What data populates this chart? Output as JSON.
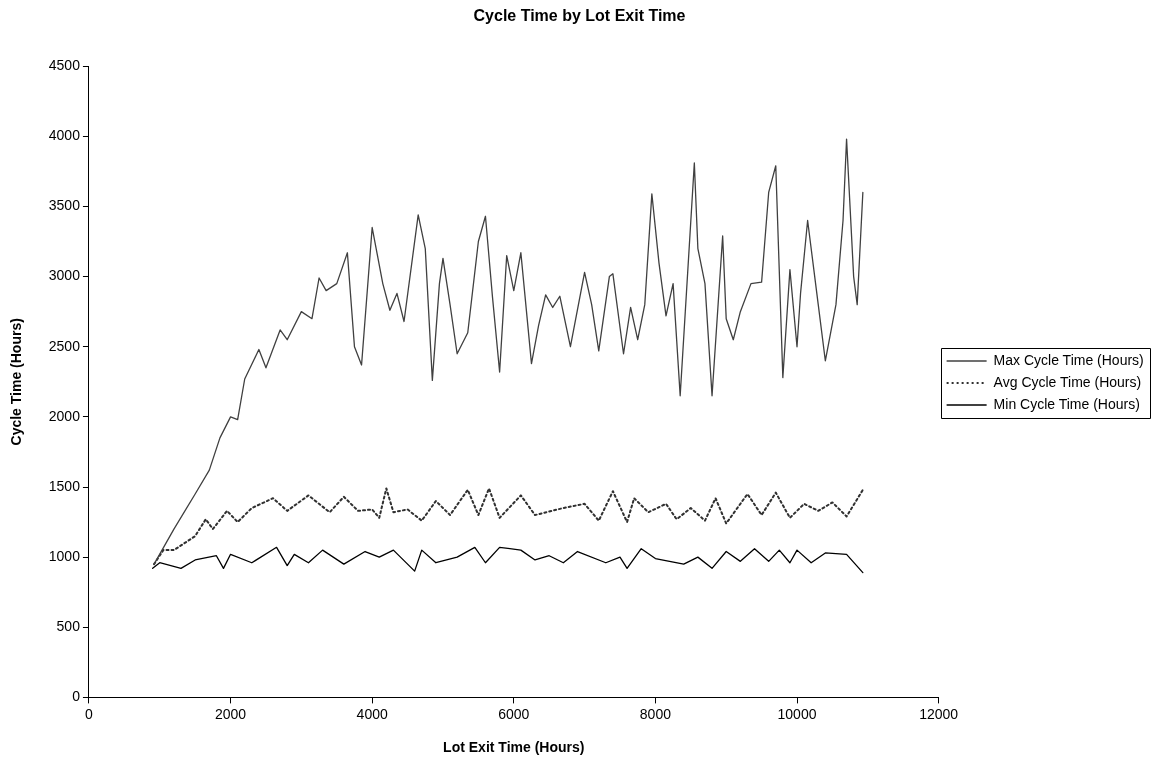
{
  "chart_data": {
    "type": "line",
    "title": "Cycle Time by Lot Exit Time",
    "xlabel": "Lot Exit Time (Hours)",
    "ylabel": "Cycle Time (Hours)",
    "xlim": [
      0,
      12000
    ],
    "xticks": [
      0,
      2000,
      4000,
      6000,
      8000,
      10000,
      12000
    ],
    "ylim": [
      0,
      4500
    ],
    "yticks": [
      0,
      500,
      1000,
      1500,
      2000,
      2500,
      3000,
      3500,
      4000,
      4500
    ],
    "grid": false,
    "legend": "right",
    "marker": "none",
    "series": [
      {
        "name": "Max Cycle Time (Hours)",
        "color": "#404040",
        "line_style": "solid",
        "x": [
          920,
          1200,
          1500,
          1700,
          1850,
          2000,
          2100,
          2200,
          2400,
          2500,
          2700,
          2800,
          3000,
          3150,
          3250,
          3350,
          3500,
          3650,
          3750,
          3850,
          4000,
          4150,
          4250,
          4350,
          4450,
          4650,
          4750,
          4850,
          4950,
          5000,
          5100,
          5200,
          5350,
          5500,
          5600,
          5700,
          5800,
          5900,
          6000,
          6100,
          6250,
          6350,
          6450,
          6550,
          6650,
          6800,
          7000,
          7100,
          7200,
          7350,
          7400,
          7550,
          7650,
          7750,
          7850,
          7950,
          8050,
          8150,
          8250,
          8350,
          8550,
          8600,
          8700,
          8800,
          8950,
          9000,
          9100,
          9200,
          9350,
          9500,
          9600,
          9700,
          9800,
          9900,
          10000,
          10050,
          10150,
          10300,
          10400,
          10550,
          10650,
          10700,
          10800,
          10850,
          10930
        ],
        "values": [
          950,
          1200,
          1450,
          1620,
          1850,
          2000,
          1980,
          2270,
          2480,
          2350,
          2620,
          2550,
          2750,
          2700,
          2990,
          2900,
          2950,
          3170,
          2500,
          2370,
          3350,
          2950,
          2760,
          2880,
          2680,
          3440,
          3200,
          2260,
          2950,
          3130,
          2800,
          2450,
          2600,
          3250,
          3430,
          2850,
          2320,
          3150,
          2900,
          3170,
          2380,
          2650,
          2870,
          2780,
          2860,
          2500,
          3030,
          2800,
          2470,
          3000,
          3020,
          2450,
          2780,
          2550,
          2800,
          3590,
          3100,
          2720,
          2950,
          2150,
          3810,
          3200,
          2950,
          2150,
          3290,
          2700,
          2550,
          2750,
          2950,
          2960,
          3600,
          3790,
          2280,
          3050,
          2500,
          2880,
          3400,
          2800,
          2400,
          2800,
          3400,
          3980,
          3000,
          2800,
          3600
        ]
      },
      {
        "name": "Avg Cycle Time (Hours)",
        "color": "#303030",
        "line_style": "dotted",
        "x": [
          920,
          1050,
          1200,
          1500,
          1650,
          1750,
          1950,
          2100,
          2300,
          2600,
          2800,
          3100,
          3400,
          3600,
          3800,
          4000,
          4100,
          4200,
          4300,
          4500,
          4700,
          4900,
          5100,
          5350,
          5500,
          5650,
          5800,
          6100,
          6300,
          6700,
          7000,
          7200,
          7400,
          7600,
          7700,
          7900,
          8150,
          8300,
          8500,
          8700,
          8850,
          9000,
          9300,
          9500,
          9700,
          9900,
          10100,
          10300,
          10500,
          10700,
          10930
        ],
        "values": [
          950,
          1050,
          1050,
          1150,
          1270,
          1200,
          1330,
          1250,
          1350,
          1420,
          1330,
          1440,
          1320,
          1430,
          1330,
          1340,
          1280,
          1490,
          1320,
          1340,
          1260,
          1400,
          1300,
          1480,
          1300,
          1490,
          1280,
          1440,
          1300,
          1350,
          1380,
          1260,
          1470,
          1250,
          1420,
          1320,
          1380,
          1270,
          1350,
          1260,
          1420,
          1240,
          1450,
          1300,
          1460,
          1280,
          1380,
          1330,
          1390,
          1290,
          1480
        ]
      },
      {
        "name": "Min Cycle Time (Hours)",
        "color": "#000000",
        "line_style": "solid",
        "x": [
          900,
          1000,
          1300,
          1500,
          1800,
          1900,
          2000,
          2300,
          2650,
          2800,
          2900,
          3100,
          3300,
          3600,
          3900,
          4100,
          4300,
          4600,
          4700,
          4900,
          5200,
          5450,
          5600,
          5800,
          6100,
          6300,
          6500,
          6700,
          6900,
          7300,
          7500,
          7600,
          7800,
          8000,
          8400,
          8600,
          8800,
          9000,
          9200,
          9400,
          9600,
          9750,
          9900,
          10000,
          10200,
          10400,
          10700,
          10930
        ],
        "values": [
          920,
          960,
          920,
          980,
          1010,
          920,
          1020,
          960,
          1070,
          940,
          1020,
          960,
          1050,
          950,
          1040,
          1000,
          1050,
          900,
          1050,
          960,
          1000,
          1070,
          960,
          1070,
          1050,
          980,
          1010,
          960,
          1040,
          960,
          1000,
          920,
          1060,
          990,
          950,
          1000,
          920,
          1040,
          970,
          1060,
          970,
          1050,
          960,
          1050,
          960,
          1030,
          1020,
          890
        ]
      }
    ]
  }
}
